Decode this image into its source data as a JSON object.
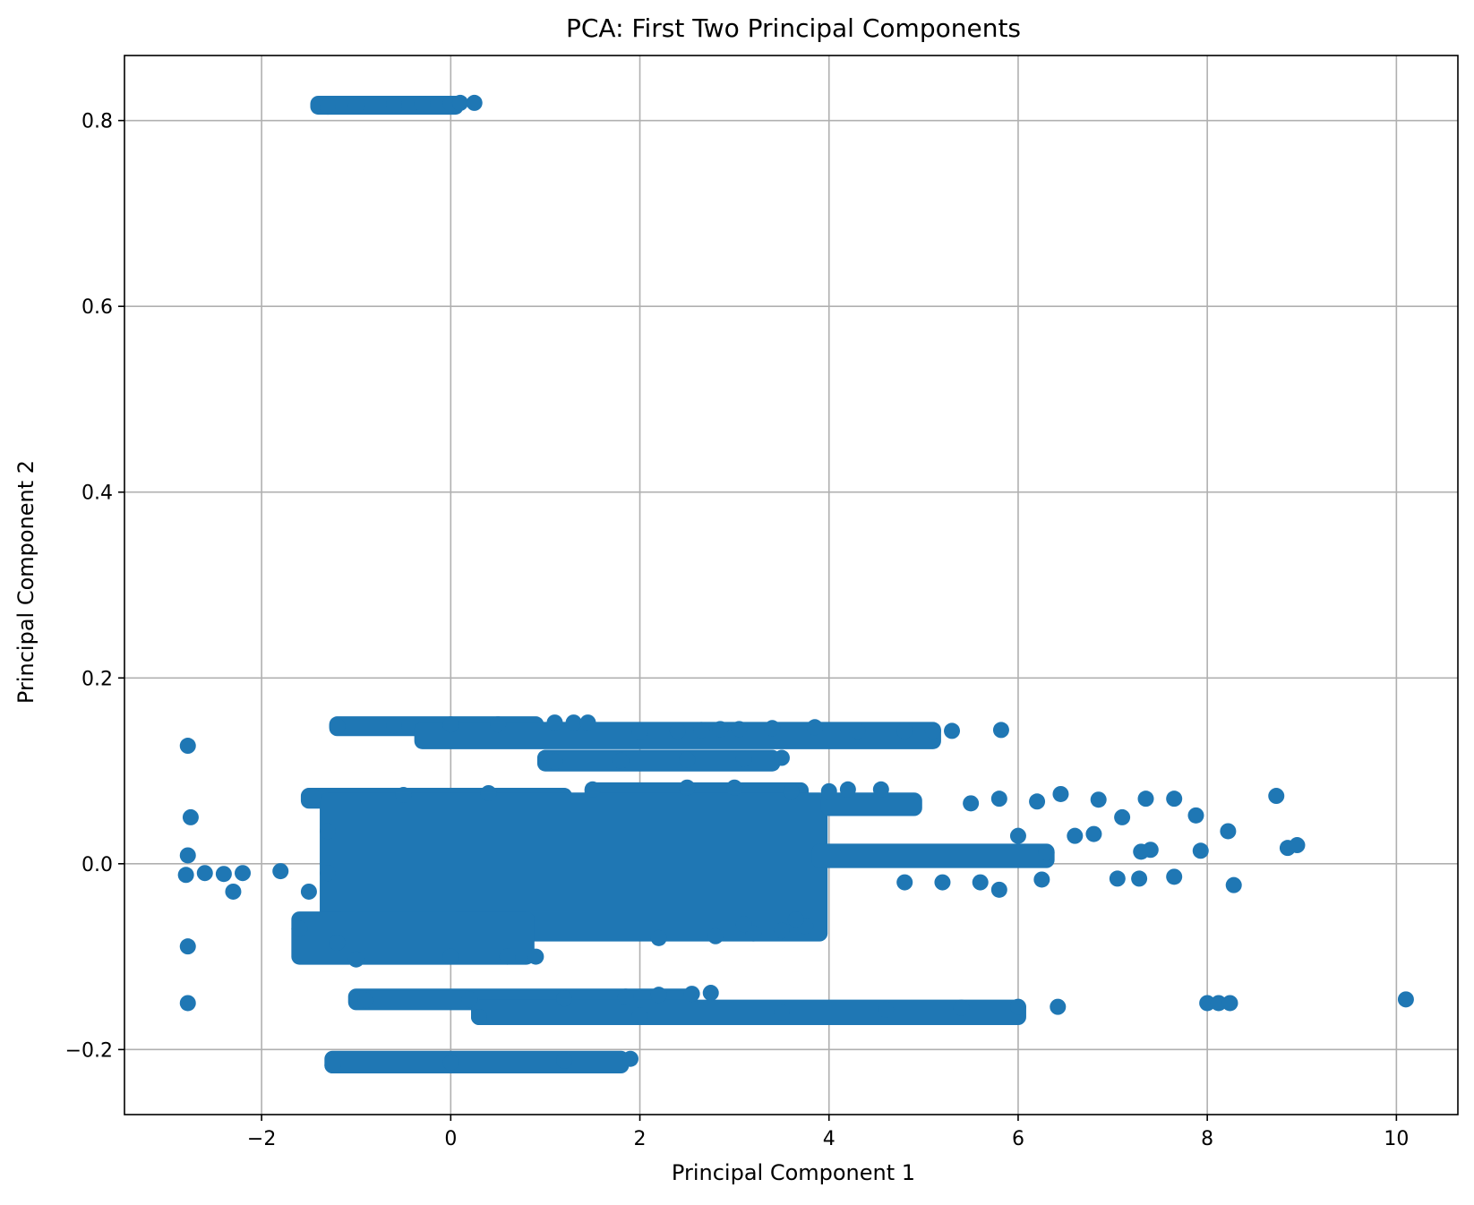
{
  "chart_data": {
    "type": "scatter",
    "title": "PCA: First Two Principal Components",
    "xlabel": "Principal Component 1",
    "ylabel": "Principal Component 2",
    "xlim": [
      -3.45,
      10.65
    ],
    "ylim": [
      -0.27,
      0.87
    ],
    "grid": true,
    "marker_color": "#1f77b4",
    "x_ticks": [
      {
        "value": -2,
        "label": "−2"
      },
      {
        "value": 0,
        "label": "0"
      },
      {
        "value": 2,
        "label": "2"
      },
      {
        "value": 4,
        "label": "4"
      },
      {
        "value": 6,
        "label": "6"
      },
      {
        "value": 8,
        "label": "8"
      },
      {
        "value": 10,
        "label": "10"
      }
    ],
    "y_ticks": [
      {
        "value": -0.2,
        "label": "−0.2"
      },
      {
        "value": 0.0,
        "label": "0.0"
      },
      {
        "value": 0.2,
        "label": "0.2"
      },
      {
        "value": 0.4,
        "label": "0.4"
      },
      {
        "value": 0.6,
        "label": "0.6"
      },
      {
        "value": 0.8,
        "label": "0.8"
      }
    ],
    "points": [
      [
        -2.78,
        0.127
      ],
      [
        -2.75,
        0.05
      ],
      [
        -2.78,
        0.009
      ],
      [
        -2.8,
        -0.012
      ],
      [
        -2.6,
        -0.01
      ],
      [
        -2.4,
        -0.011
      ],
      [
        -2.2,
        -0.01
      ],
      [
        -2.3,
        -0.03
      ],
      [
        -2.78,
        -0.089
      ],
      [
        -2.78,
        -0.15
      ],
      [
        -1.8,
        -0.008
      ],
      [
        -1.3,
        0.815
      ],
      [
        -1.0,
        0.816
      ],
      [
        -0.6,
        0.817
      ],
      [
        -0.3,
        0.818
      ],
      [
        0.0,
        0.818
      ],
      [
        0.1,
        0.819
      ],
      [
        0.25,
        0.819
      ],
      [
        -1.2,
        0.148
      ],
      [
        -0.6,
        0.149
      ],
      [
        0.0,
        0.15
      ],
      [
        0.5,
        0.15
      ],
      [
        1.1,
        0.152
      ],
      [
        1.3,
        0.152
      ],
      [
        1.45,
        0.152
      ],
      [
        2.0,
        0.142
      ],
      [
        2.4,
        0.143
      ],
      [
        2.65,
        0.144
      ],
      [
        2.85,
        0.145
      ],
      [
        3.05,
        0.145
      ],
      [
        3.4,
        0.146
      ],
      [
        3.85,
        0.147
      ],
      [
        4.3,
        0.143
      ],
      [
        4.8,
        0.143
      ],
      [
        5.1,
        0.143
      ],
      [
        5.3,
        0.143
      ],
      [
        5.82,
        0.144
      ],
      [
        1.1,
        0.11
      ],
      [
        1.8,
        0.111
      ],
      [
        2.5,
        0.112
      ],
      [
        3.1,
        0.113
      ],
      [
        3.5,
        0.114
      ],
      [
        -1.45,
        0.072
      ],
      [
        -0.5,
        0.074
      ],
      [
        0.4,
        0.076
      ],
      [
        1.5,
        0.08
      ],
      [
        2.5,
        0.082
      ],
      [
        3.0,
        0.082
      ],
      [
        3.6,
        0.078
      ],
      [
        4.0,
        0.078
      ],
      [
        4.2,
        0.08
      ],
      [
        4.55,
        0.08
      ],
      [
        5.5,
        0.065
      ],
      [
        5.8,
        0.07
      ],
      [
        6.2,
        0.067
      ],
      [
        6.45,
        0.075
      ],
      [
        6.85,
        0.069
      ],
      [
        7.35,
        0.07
      ],
      [
        7.65,
        0.07
      ],
      [
        8.73,
        0.073
      ],
      [
        6.0,
        0.03
      ],
      [
        6.3,
        0.012
      ],
      [
        6.6,
        0.03
      ],
      [
        6.8,
        0.032
      ],
      [
        7.1,
        0.05
      ],
      [
        7.3,
        0.013
      ],
      [
        7.4,
        0.015
      ],
      [
        7.88,
        0.052
      ],
      [
        7.93,
        0.014
      ],
      [
        8.22,
        0.035
      ],
      [
        8.85,
        0.017
      ],
      [
        8.95,
        0.02
      ],
      [
        6.25,
        -0.017
      ],
      [
        7.05,
        -0.016
      ],
      [
        7.28,
        -0.016
      ],
      [
        7.65,
        -0.014
      ],
      [
        8.28,
        -0.023
      ],
      [
        5.6,
        -0.02
      ],
      [
        5.8,
        -0.028
      ],
      [
        4.8,
        -0.02
      ],
      [
        5.2,
        -0.02
      ],
      [
        -1.3,
        0.035
      ],
      [
        -1.3,
        -0.01
      ],
      [
        -1.5,
        -0.03
      ],
      [
        -1.6,
        -0.07
      ],
      [
        -1.2,
        -0.085
      ],
      [
        -1.0,
        -0.103
      ],
      [
        0.0,
        -0.1
      ],
      [
        0.6,
        -0.1
      ],
      [
        0.9,
        -0.1
      ],
      [
        2.2,
        -0.08
      ],
      [
        2.8,
        -0.078
      ],
      [
        3.2,
        -0.075
      ],
      [
        3.5,
        -0.072
      ],
      [
        3.75,
        -0.067
      ],
      [
        3.1,
        -0.065
      ],
      [
        3.65,
        -0.06
      ],
      [
        -0.9,
        -0.147
      ],
      [
        0.2,
        -0.146
      ],
      [
        1.2,
        -0.145
      ],
      [
        1.85,
        -0.143
      ],
      [
        2.2,
        -0.141
      ],
      [
        2.55,
        -0.14
      ],
      [
        2.75,
        -0.139
      ],
      [
        0.3,
        -0.165
      ],
      [
        2.0,
        -0.163
      ],
      [
        3.5,
        -0.16
      ],
      [
        4.6,
        -0.157
      ],
      [
        5.4,
        -0.155
      ],
      [
        6.0,
        -0.154
      ],
      [
        6.42,
        -0.154
      ],
      [
        8.0,
        -0.15
      ],
      [
        8.12,
        -0.15
      ],
      [
        8.24,
        -0.15
      ],
      [
        10.1,
        -0.146
      ],
      [
        -1.25,
        -0.217
      ],
      [
        0.0,
        -0.214
      ],
      [
        1.2,
        -0.212
      ],
      [
        1.9,
        -0.21
      ]
    ],
    "bands": [
      {
        "x": [
          -1.4,
          0.05
        ],
        "y": [
          0.815,
          0.818
        ]
      },
      {
        "x": [
          -1.2,
          0.9
        ],
        "y": [
          0.146,
          0.15
        ]
      },
      {
        "x": [
          -0.3,
          5.1
        ],
        "y": [
          0.132,
          0.144
        ]
      },
      {
        "x": [
          1.0,
          3.4
        ],
        "y": [
          0.108,
          0.114
        ]
      },
      {
        "x": [
          -1.5,
          1.2
        ],
        "y": [
          0.068,
          0.073
        ]
      },
      {
        "x": [
          1.5,
          3.7
        ],
        "y": [
          0.075,
          0.079
        ]
      },
      {
        "x": [
          -1.3,
          3.9
        ],
        "y": [
          -0.075,
          0.068
        ]
      },
      {
        "x": [
          -1.6,
          0.8
        ],
        "y": [
          -0.1,
          -0.06
        ]
      },
      {
        "x": [
          3.9,
          6.3
        ],
        "y": [
          0.004,
          0.013
        ]
      },
      {
        "x": [
          4.0,
          4.9
        ],
        "y": [
          0.06,
          0.068
        ]
      },
      {
        "x": [
          -1.0,
          2.5
        ],
        "y": [
          -0.149,
          -0.143
        ]
      },
      {
        "x": [
          0.3,
          6.0
        ],
        "y": [
          -0.165,
          -0.155
        ]
      },
      {
        "x": [
          -1.25,
          1.8
        ],
        "y": [
          -0.217,
          -0.21
        ]
      }
    ]
  }
}
